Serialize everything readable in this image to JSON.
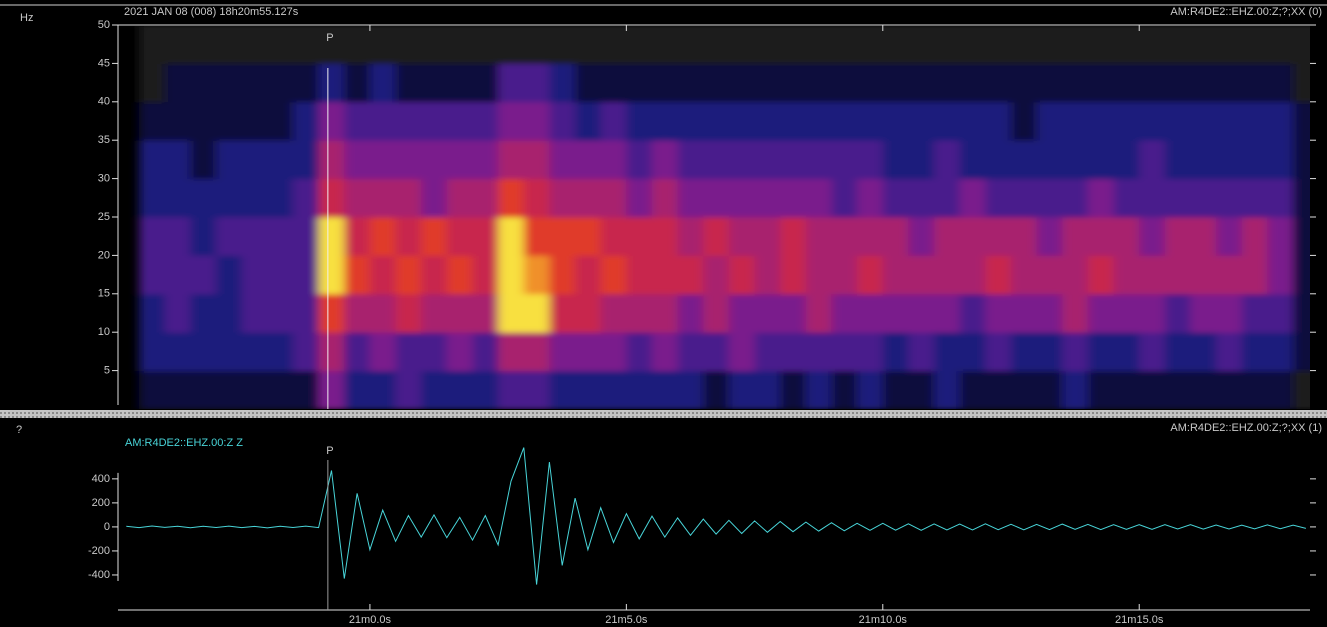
{
  "chart_data": [
    {
      "type": "heatmap",
      "ylabel": "Hz",
      "start_time": "2021 JAN 08 (008)  18h20m55.127s",
      "channel": "AM:R4DE2::EHZ.00:Z;?;XX (0)",
      "ylim": [
        0,
        50
      ],
      "yticks": [
        5,
        10,
        15,
        20,
        25,
        30,
        35,
        40,
        45,
        50
      ],
      "x_edges": [
        -4.5,
        -4,
        -3.5,
        -3,
        -2.5,
        -2,
        -1.5,
        -1,
        -0.5,
        0,
        0.5,
        1,
        1.5,
        2,
        2.5,
        3,
        3.5,
        4,
        4.5,
        5,
        5.5,
        6,
        6.5,
        7,
        7.5,
        8,
        8.5,
        9,
        9.5,
        10,
        10.5,
        11,
        11.5,
        12,
        12.5,
        13,
        13.5,
        14,
        14.5,
        15,
        15.5,
        16,
        16.5,
        17,
        17.5,
        18,
        18.5
      ],
      "y_edges": [
        0,
        5,
        10,
        15,
        20,
        25,
        30,
        35,
        40,
        45,
        50
      ],
      "colormap": [
        "#1c1c1c",
        "#0a0a3c",
        "#1c1c7c",
        "#4a1c8c",
        "#7a1c8c",
        "#a8206e",
        "#c8284e",
        "#e03a2a",
        "#f0902a",
        "#f8e040"
      ],
      "z": [
        [
          1,
          1,
          1,
          1,
          1,
          1,
          1,
          4,
          2,
          2,
          3,
          2,
          2,
          2,
          3,
          3,
          2,
          2,
          2,
          2,
          2,
          2,
          1,
          2,
          2,
          1,
          2,
          1,
          2,
          1,
          1,
          2,
          1,
          1,
          1,
          1,
          2,
          1,
          1,
          1,
          1,
          1,
          1,
          1,
          1,
          0
        ],
        [
          2,
          2,
          2,
          2,
          2,
          2,
          3,
          5,
          3,
          4,
          3,
          3,
          4,
          3,
          5,
          5,
          4,
          4,
          4,
          3,
          4,
          3,
          3,
          4,
          3,
          3,
          3,
          3,
          3,
          2,
          3,
          2,
          2,
          3,
          2,
          2,
          3,
          2,
          2,
          3,
          2,
          2,
          3,
          2,
          2,
          1
        ],
        [
          2,
          3,
          2,
          2,
          3,
          3,
          3,
          7,
          5,
          5,
          6,
          5,
          5,
          5,
          9,
          9,
          6,
          6,
          5,
          5,
          5,
          4,
          5,
          4,
          4,
          4,
          5,
          4,
          4,
          4,
          4,
          4,
          3,
          4,
          4,
          4,
          5,
          4,
          4,
          4,
          3,
          4,
          4,
          3,
          3,
          1
        ],
        [
          3,
          3,
          3,
          2,
          3,
          3,
          3,
          9,
          7,
          6,
          7,
          6,
          7,
          6,
          9,
          8,
          7,
          6,
          7,
          6,
          6,
          6,
          5,
          6,
          5,
          6,
          5,
          5,
          6,
          5,
          5,
          5,
          5,
          6,
          5,
          5,
          5,
          6,
          5,
          5,
          5,
          5,
          5,
          5,
          4,
          1
        ],
        [
          3,
          3,
          2,
          3,
          3,
          3,
          3,
          9,
          6,
          7,
          6,
          7,
          6,
          6,
          9,
          7,
          7,
          7,
          6,
          6,
          6,
          5,
          6,
          5,
          5,
          6,
          5,
          5,
          5,
          5,
          4,
          5,
          5,
          5,
          5,
          4,
          5,
          5,
          5,
          4,
          5,
          5,
          4,
          5,
          4,
          1
        ],
        [
          2,
          2,
          2,
          2,
          2,
          2,
          3,
          6,
          5,
          5,
          5,
          4,
          5,
          5,
          7,
          6,
          5,
          5,
          5,
          4,
          5,
          4,
          4,
          4,
          4,
          4,
          4,
          3,
          4,
          3,
          3,
          3,
          4,
          3,
          3,
          3,
          3,
          4,
          3,
          3,
          3,
          3,
          3,
          3,
          3,
          1
        ],
        [
          2,
          2,
          1,
          2,
          2,
          2,
          2,
          5,
          4,
          4,
          4,
          4,
          4,
          4,
          5,
          5,
          4,
          4,
          4,
          3,
          4,
          3,
          3,
          3,
          3,
          3,
          3,
          3,
          3,
          2,
          2,
          3,
          2,
          2,
          2,
          2,
          2,
          2,
          2,
          3,
          2,
          2,
          2,
          2,
          2,
          1
        ],
        [
          1,
          1,
          1,
          1,
          1,
          1,
          2,
          4,
          3,
          3,
          3,
          3,
          3,
          3,
          4,
          4,
          3,
          2,
          3,
          2,
          2,
          2,
          2,
          2,
          2,
          2,
          2,
          2,
          2,
          2,
          2,
          2,
          2,
          2,
          1,
          2,
          2,
          2,
          2,
          2,
          2,
          2,
          2,
          2,
          2,
          1
        ],
        [
          0,
          1,
          1,
          1,
          1,
          1,
          1,
          2,
          1,
          2,
          1,
          1,
          1,
          1,
          3,
          3,
          2,
          1,
          1,
          1,
          1,
          1,
          1,
          1,
          1,
          1,
          1,
          1,
          1,
          1,
          1,
          1,
          1,
          1,
          1,
          1,
          1,
          1,
          1,
          1,
          1,
          1,
          1,
          1,
          1,
          0
        ],
        [
          0,
          0,
          0,
          0,
          0,
          0,
          0,
          0,
          0,
          0,
          0,
          0,
          0,
          0,
          0,
          0,
          0,
          0,
          0,
          0,
          0,
          0,
          0,
          0,
          0,
          0,
          0,
          0,
          0,
          0,
          0,
          0,
          0,
          0,
          0,
          0,
          0,
          0,
          0,
          0,
          0,
          0,
          0,
          0,
          0,
          0
        ]
      ],
      "picks": [
        {
          "label": "P",
          "x": -0.82
        }
      ]
    },
    {
      "type": "line",
      "ylabel": "?",
      "channel": "AM:R4DE2::EHZ.00:Z;?;XX (1)",
      "xlim": [
        -4.873,
        18.33
      ],
      "xticks": [
        {
          "value": 0,
          "label": "21m0.0s"
        },
        {
          "value": 5,
          "label": "21m5.0s"
        },
        {
          "value": 10,
          "label": "21m10.0s"
        },
        {
          "value": 15,
          "label": "21m15.0s"
        }
      ],
      "ylim": [
        -700,
        890
      ],
      "yticks": [
        -400,
        -200,
        0,
        200,
        400
      ],
      "x": [
        -4.75,
        -4.5,
        -4.25,
        -4,
        -3.75,
        -3.5,
        -3.25,
        -3,
        -2.75,
        -2.5,
        -2.25,
        -2,
        -1.75,
        -1.5,
        -1.25,
        -1,
        -0.75,
        -0.5,
        -0.25,
        0,
        0.25,
        0.5,
        0.75,
        1,
        1.25,
        1.5,
        1.75,
        2,
        2.25,
        2.5,
        2.75,
        3,
        3.25,
        3.5,
        3.75,
        4,
        4.25,
        4.5,
        4.75,
        5,
        5.25,
        5.5,
        5.75,
        6,
        6.25,
        6.5,
        6.75,
        7,
        7.25,
        7.5,
        7.75,
        8,
        8.25,
        8.5,
        8.75,
        9,
        9.25,
        9.5,
        9.75,
        10,
        10.25,
        10.5,
        10.75,
        11,
        11.25,
        11.5,
        11.75,
        12,
        12.25,
        12.5,
        12.75,
        13,
        13.25,
        13.5,
        13.75,
        14,
        14.25,
        14.5,
        14.75,
        15,
        15.25,
        15.5,
        15.75,
        16,
        16.25,
        16.5,
        16.75,
        17,
        17.25,
        17.5,
        17.75,
        18,
        18.25
      ],
      "series": [
        {
          "name": "AM:R4DE2::EHZ.00:Z Z",
          "color": "#48d4d8",
          "values": [
            5,
            -6,
            8,
            -4,
            6,
            -7,
            5,
            -5,
            7,
            -6,
            4,
            -8,
            6,
            -5,
            7,
            -6,
            470,
            -430,
            280,
            -190,
            140,
            -120,
            95,
            -85,
            100,
            -90,
            80,
            -110,
            95,
            -150,
            380,
            660,
            -480,
            540,
            -320,
            240,
            -190,
            160,
            -130,
            110,
            -100,
            90,
            -85,
            75,
            -70,
            65,
            -60,
            55,
            -55,
            50,
            -45,
            45,
            -40,
            40,
            -35,
            35,
            -32,
            30,
            -28,
            30,
            -27,
            26,
            -28,
            25,
            -26,
            24,
            -25,
            26,
            -23,
            22,
            -24,
            21,
            -22,
            23,
            -20,
            21,
            -22,
            19,
            -20,
            18,
            -20,
            19,
            -17,
            18,
            -18,
            16,
            -17,
            15,
            -16,
            17,
            -15,
            14,
            -12
          ]
        }
      ],
      "picks": [
        {
          "label": "P",
          "x": -0.82
        }
      ]
    }
  ]
}
